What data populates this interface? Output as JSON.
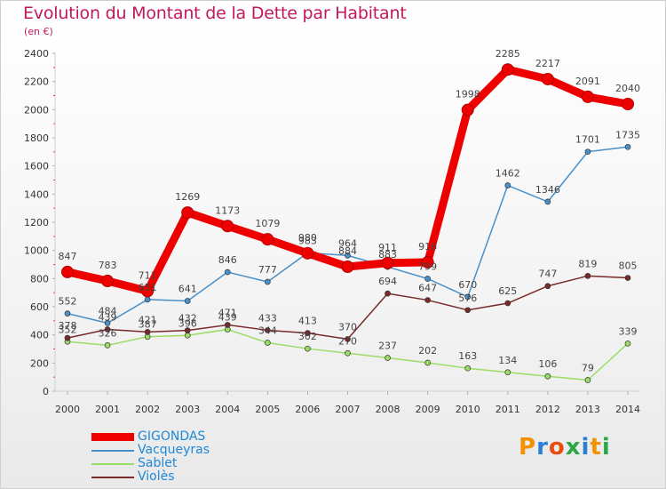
{
  "header": {
    "title": "Evolution du Montant de la Dette par Habitant",
    "subtitle": "(en €)"
  },
  "logo": {
    "text": "Proxiti"
  },
  "chart_data": {
    "type": "line",
    "title": "Evolution du Montant de la Dette par Habitant",
    "subtitle": "(en €)",
    "categories": [
      "2000",
      "2001",
      "2002",
      "2003",
      "2004",
      "2005",
      "2006",
      "2007",
      "2008",
      "2009",
      "2010",
      "2011",
      "2012",
      "2013",
      "2014"
    ],
    "ylim": [
      0,
      2400
    ],
    "yticks": [
      0,
      200,
      400,
      600,
      800,
      1000,
      1200,
      1400,
      1600,
      1800,
      2000,
      2200,
      2400
    ],
    "grid": false,
    "legend_position": "bottom-left",
    "series": [
      {
        "name": "GIGONDAS",
        "color": "#ee0000",
        "values": [
          847,
          783,
          711,
          1269,
          1173,
          1079,
          980,
          884,
          911,
          916,
          1998,
          2285,
          2217,
          2091,
          2040
        ]
      },
      {
        "name": "Vacqueyras",
        "color": "#4a90c8",
        "values": [
          552,
          484,
          651,
          641,
          846,
          777,
          983,
          964,
          883,
          799,
          670,
          1462,
          1346,
          1701,
          1735
        ]
      },
      {
        "name": "Sablet",
        "color": "#99dd66",
        "values": [
          352,
          326,
          387,
          396,
          439,
          344,
          302,
          270,
          237,
          202,
          163,
          134,
          106,
          79,
          339
        ]
      },
      {
        "name": "Violès",
        "color": "#7a2a2a",
        "values": [
          378,
          439,
          421,
          432,
          471,
          433,
          413,
          370,
          694,
          647,
          576,
          625,
          747,
          819,
          805
        ]
      }
    ]
  }
}
